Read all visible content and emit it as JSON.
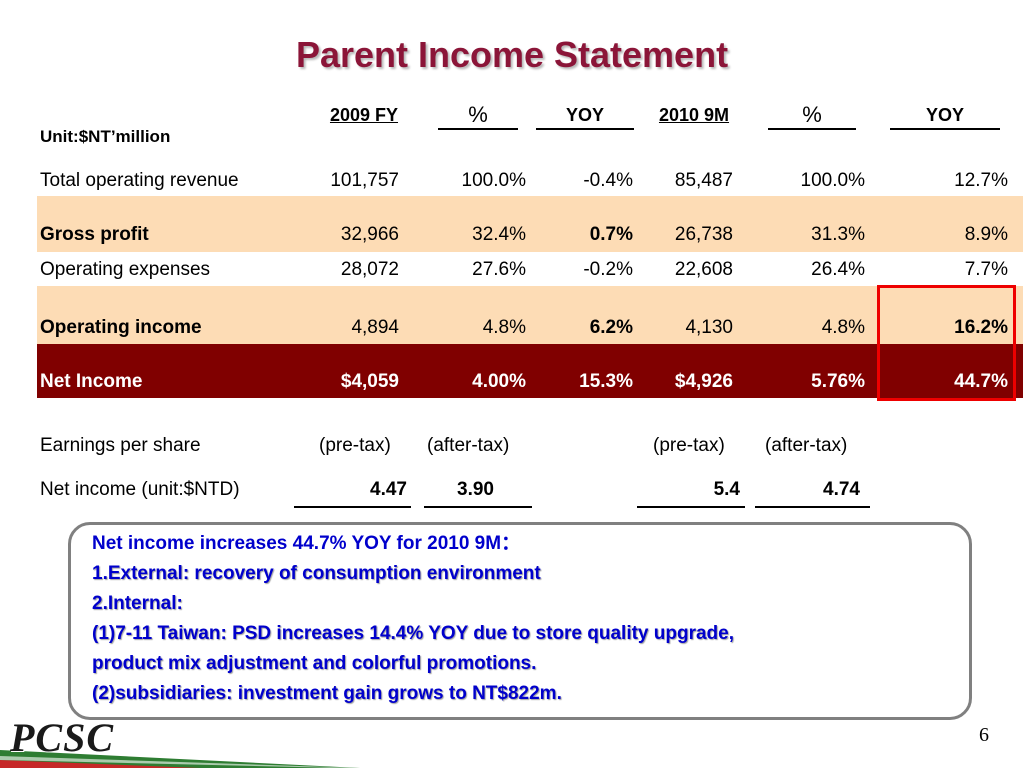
{
  "title": "Parent Income Statement",
  "unit": "Unit:$NT’million",
  "headers": [
    "2009 FY",
    "%",
    "YOY",
    "2010 9M",
    "%",
    "YOY"
  ],
  "rows": [
    {
      "label": "Total operating revenue",
      "values": [
        "101,757",
        "100.0%",
        "-0.4%",
        "85,487",
        "100.0%",
        "12.7%"
      ]
    },
    {
      "label": "Gross profit",
      "values": [
        "32,966",
        "32.4%",
        "0.7%",
        "26,738",
        "31.3%",
        "8.9%"
      ]
    },
    {
      "label": "Operating expenses",
      "values": [
        "28,072",
        "27.6%",
        "-0.2%",
        "22,608",
        "26.4%",
        "7.7%"
      ]
    },
    {
      "label": "Operating income",
      "values": [
        "4,894",
        "4.8%",
        "6.2%",
        "4,130",
        "4.8%",
        "16.2%"
      ]
    },
    {
      "label": "Net Income",
      "values": [
        "$4,059",
        "4.00%",
        "15.3%",
        "$4,926",
        "5.76%",
        "44.7%"
      ]
    }
  ],
  "eps": {
    "label": "Earnings per share",
    "columns": [
      "(pre-tax)",
      "(after-tax)",
      "(pre-tax)",
      "(after-tax)"
    ],
    "net_income_label": "Net income (unit:$NTD)",
    "values": [
      "4.47",
      "3.90",
      "5.4",
      "4.74"
    ]
  },
  "notes": [
    "Net income increases 44.7% YOY for 2010 9M：",
    "1.External: recovery of consumption environment",
    "2.Internal:",
    "(1)7-11 Taiwan: PSD increases 14.4% YOY due to store quality upgrade,",
    "product mix adjustment and colorful promotions.",
    "(2)subsidiaries: investment gain grows to NT$822m."
  ],
  "page_number": "6",
  "logo_text": "PCSC",
  "colors": {
    "title": "#8B1538",
    "highlight_row": "#FDDCB5",
    "net_income_row": "#800000",
    "note_text": "#0000CC",
    "red_box": "#EE0000",
    "logo_stripe_green": "#2E7D32",
    "logo_stripe_red": "#C62828"
  }
}
